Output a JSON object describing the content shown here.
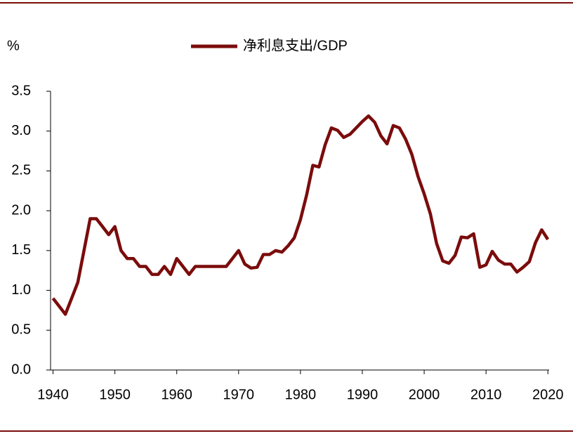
{
  "chart_data": {
    "type": "line",
    "y_axis_label": "%",
    "x": [
      1940,
      1941,
      1942,
      1943,
      1944,
      1945,
      1946,
      1947,
      1948,
      1949,
      1950,
      1951,
      1952,
      1953,
      1954,
      1955,
      1956,
      1957,
      1958,
      1959,
      1960,
      1961,
      1962,
      1963,
      1964,
      1965,
      1966,
      1967,
      1968,
      1969,
      1970,
      1971,
      1972,
      1973,
      1974,
      1975,
      1976,
      1977,
      1978,
      1979,
      1980,
      1981,
      1982,
      1983,
      1984,
      1985,
      1986,
      1987,
      1988,
      1989,
      1990,
      1991,
      1992,
      1993,
      1994,
      1995,
      1996,
      1997,
      1998,
      1999,
      2000,
      2001,
      2002,
      2003,
      2004,
      2005,
      2006,
      2007,
      2008,
      2009,
      2010,
      2011,
      2012,
      2013,
      2014,
      2015,
      2016,
      2017,
      2018,
      2019,
      2020
    ],
    "series": [
      {
        "name": "净利息支出/GDP",
        "color": "#7b0c0c",
        "values": [
          0.9,
          0.8,
          0.7,
          0.9,
          1.1,
          1.5,
          1.9,
          1.9,
          1.8,
          1.7,
          1.8,
          1.5,
          1.4,
          1.4,
          1.3,
          1.3,
          1.2,
          1.2,
          1.3,
          1.2,
          1.4,
          1.3,
          1.2,
          1.3,
          1.3,
          1.3,
          1.3,
          1.3,
          1.3,
          1.4,
          1.5,
          1.33,
          1.28,
          1.29,
          1.45,
          1.45,
          1.5,
          1.48,
          1.56,
          1.66,
          1.89,
          2.2,
          2.57,
          2.55,
          2.83,
          3.04,
          3.01,
          2.92,
          2.96,
          3.04,
          3.12,
          3.19,
          3.11,
          2.94,
          2.84,
          3.07,
          3.04,
          2.9,
          2.71,
          2.43,
          2.21,
          1.96,
          1.59,
          1.37,
          1.34,
          1.44,
          1.67,
          1.66,
          1.71,
          1.29,
          1.32,
          1.49,
          1.38,
          1.33,
          1.33,
          1.23,
          1.29,
          1.36,
          1.6,
          1.76,
          1.64
        ]
      }
    ],
    "xlim": [
      1939.6,
      2020.2
    ],
    "xticks": [
      1940,
      1950,
      1960,
      1970,
      1980,
      1990,
      2000,
      2010,
      2020
    ],
    "ylim": [
      0,
      3.5
    ],
    "yticks": [
      {
        "value": 0,
        "label": "0.0"
      },
      0.5,
      {
        "value": 1,
        "label": "1.0"
      },
      1.5,
      {
        "value": 2,
        "label": "2.0"
      },
      2.5,
      {
        "value": 3,
        "label": "3.0"
      },
      3.5
    ],
    "legend": "top"
  }
}
